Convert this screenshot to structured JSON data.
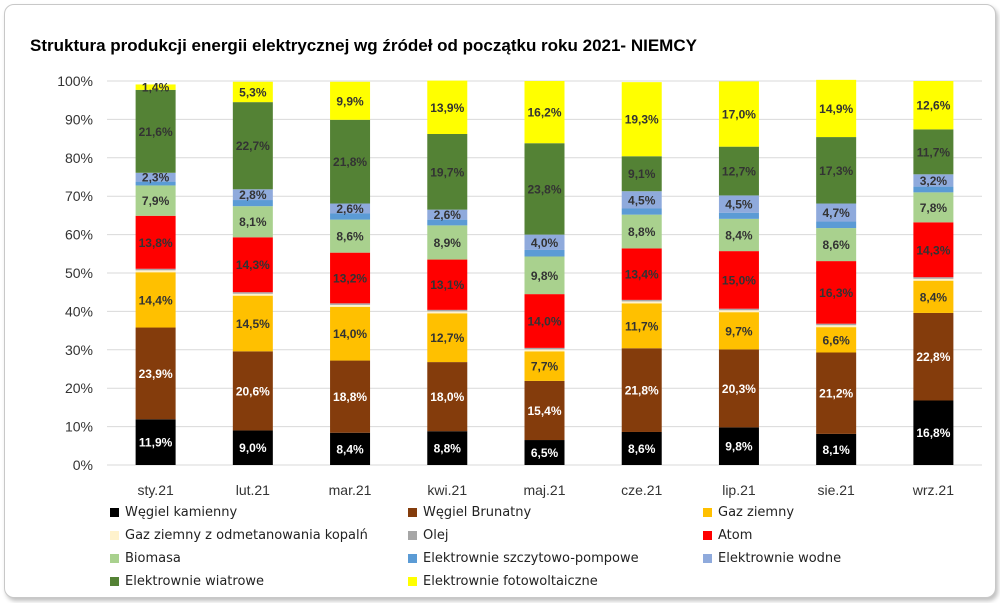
{
  "chart_data": {
    "type": "bar",
    "stacked": true,
    "title": "Struktura produkcji energii elektrycznej wg źródeł od początku roku 2021- NIEMCY",
    "categories": [
      "sty.21",
      "lut.21",
      "mar.21",
      "kwi.21",
      "maj.21",
      "cze.21",
      "lip.21",
      "sie.21",
      "wrz.21"
    ],
    "yticks": [
      "0%",
      "10%",
      "20%",
      "30%",
      "40%",
      "50%",
      "60%",
      "70%",
      "80%",
      "90%",
      "100%"
    ],
    "ylim": [
      0,
      100
    ],
    "legend_position": "bottom",
    "series": [
      {
        "name": "Węgiel kamienny",
        "color": "#000000",
        "label_color": "#ffffff",
        "values": [
          11.9,
          9.0,
          8.4,
          8.8,
          6.5,
          8.6,
          9.8,
          8.1,
          16.8
        ],
        "labels": [
          "11,9%",
          "9,0%",
          "8,4%",
          "8,8%",
          "6,5%",
          "8,6%",
          "9,8%",
          "8,1%",
          "16,8%"
        ]
      },
      {
        "name": "Węgiel Brunatny",
        "color": "#843c0c",
        "label_color": "#ffffff",
        "values": [
          23.9,
          20.6,
          18.8,
          18.0,
          15.4,
          21.8,
          20.3,
          21.2,
          22.8
        ],
        "labels": [
          "23,9%",
          "20,6%",
          "18,8%",
          "18,0%",
          "15,4%",
          "21,8%",
          "20,3%",
          "21,2%",
          "22,8%"
        ]
      },
      {
        "name": "Gaz  ziemny",
        "color": "#ffc000",
        "label_color": "#333333",
        "values": [
          14.4,
          14.5,
          14.0,
          12.7,
          7.7,
          11.7,
          9.7,
          6.6,
          8.4
        ],
        "labels": [
          "14,4%",
          "14,5%",
          "14,0%",
          "12,7%",
          "7,7%",
          "11,7%",
          "9,7%",
          "6,6%",
          "8,4%"
        ]
      },
      {
        "name": "Gaz ziemny z odmetanowania kopalń",
        "color": "#fff2cc",
        "label_color": "#333333",
        "values": [
          0.5,
          0.5,
          0.5,
          0.5,
          0.5,
          0.5,
          0.5,
          0.5,
          0.5
        ],
        "labels": [
          "",
          "",
          "",
          "",
          "",
          "",
          "",
          "",
          ""
        ]
      },
      {
        "name": "Olej",
        "color": "#a6a6a6",
        "label_color": "#333333",
        "values": [
          0.4,
          0.4,
          0.4,
          0.4,
          0.4,
          0.4,
          0.4,
          0.4,
          0.4
        ],
        "labels": [
          "",
          "",
          "",
          "",
          "",
          "",
          "",
          "",
          ""
        ]
      },
      {
        "name": "Atom",
        "color": "#ff0000",
        "label_color": "#333333",
        "values": [
          13.8,
          14.3,
          13.2,
          13.1,
          14.0,
          13.4,
          15.0,
          16.3,
          14.3
        ],
        "labels": [
          "13,8%",
          "14,3%",
          "13,2%",
          "13,1%",
          "14,0%",
          "13,4%",
          "15,0%",
          "16,3%",
          "14,3%"
        ]
      },
      {
        "name": "Biomasa",
        "color": "#a9d18e",
        "label_color": "#333333",
        "values": [
          7.9,
          8.1,
          8.6,
          8.9,
          9.8,
          8.8,
          8.4,
          8.6,
          7.8
        ],
        "labels": [
          "7,9%",
          "8,1%",
          "8,6%",
          "8,9%",
          "9,8%",
          "8,8%",
          "8,4%",
          "8,6%",
          "7,8%"
        ]
      },
      {
        "name": "Elektrownie szczytowo-pompowe",
        "color": "#5b9bd5",
        "label_color": "#333333",
        "values": [
          1.0,
          1.6,
          1.6,
          1.5,
          1.7,
          1.6,
          1.6,
          1.7,
          1.5
        ],
        "labels": [
          "",
          "",
          "",
          "",
          "",
          "",
          "",
          "",
          ""
        ]
      },
      {
        "name": "Elektrownie wodne",
        "color": "#8faadc",
        "label_color": "#333333",
        "values": [
          2.3,
          2.8,
          2.6,
          2.6,
          4.0,
          4.5,
          4.5,
          4.7,
          3.2
        ],
        "labels": [
          "2,3%",
          "2,8%",
          "2,6%",
          "2,6%",
          "4,0%",
          "4,5%",
          "4,5%",
          "4,7%",
          "3,2%"
        ]
      },
      {
        "name": "Elektrownie wiatrowe",
        "color": "#548235",
        "label_color": "#333333",
        "values": [
          21.6,
          22.7,
          21.8,
          19.7,
          23.8,
          9.1,
          12.7,
          17.3,
          11.7
        ],
        "labels": [
          "21,6%",
          "22,7%",
          "21,8%",
          "19,7%",
          "23,8%",
          "9,1%",
          "12,7%",
          "17,3%",
          "11,7%"
        ]
      },
      {
        "name": "Elektrownie fotowoltaiczne",
        "color": "#ffff00",
        "label_color": "#333333",
        "values": [
          1.4,
          5.3,
          9.9,
          13.9,
          16.2,
          19.3,
          17.0,
          14.9,
          12.6
        ],
        "labels": [
          "1,4%",
          "5,3%",
          "9,9%",
          "13,9%",
          "16,2%",
          "19,3%",
          "17,0%",
          "14,9%",
          "12,6%"
        ]
      }
    ]
  }
}
